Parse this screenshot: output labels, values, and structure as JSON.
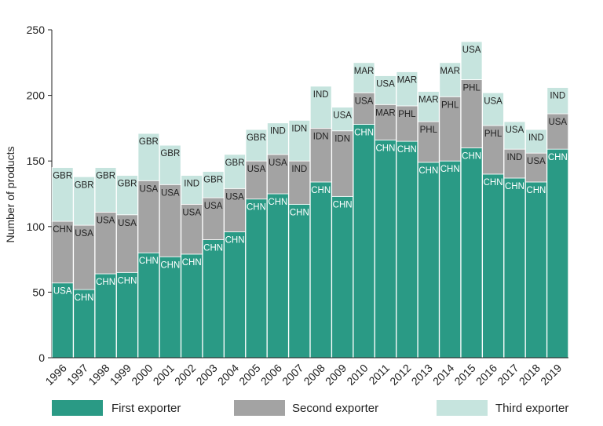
{
  "chart_data": {
    "type": "bar",
    "stacked": true,
    "title": "",
    "xlabel": "",
    "ylabel": "Number of products",
    "ylim": [
      0,
      250
    ],
    "yticks": [
      0,
      50,
      100,
      150,
      200,
      250
    ],
    "grid": false,
    "legend_position": "bottom",
    "categories": [
      "1996",
      "1997",
      "1998",
      "1999",
      "2000",
      "2001",
      "2002",
      "2003",
      "2004",
      "2005",
      "2006",
      "2007",
      "2008",
      "2009",
      "2010",
      "2011",
      "2012",
      "2013",
      "2014",
      "2015",
      "2016",
      "2017",
      "2018",
      "2019"
    ],
    "series": [
      {
        "name": "First exporter",
        "color": "#2a9a85",
        "values": [
          57,
          52,
          64,
          65,
          80,
          77,
          79,
          90,
          96,
          121,
          125,
          117,
          134,
          123,
          178,
          166,
          165,
          149,
          150,
          160,
          140,
          137,
          134,
          159
        ],
        "labels": [
          "USA",
          "CHN",
          "CHN",
          "CHN",
          "CHN",
          "CHN",
          "CHN",
          "CHN",
          "CHN",
          "CHN",
          "CHN",
          "CHN",
          "CHN",
          "CHN",
          "CHN",
          "CHN",
          "CHN",
          "CHN",
          "CHN",
          "CHN",
          "CHN",
          "CHN",
          "CHN",
          "CHN"
        ]
      },
      {
        "name": "Second exporter",
        "color": "#a3a3a3",
        "values": [
          47,
          49,
          47,
          44,
          55,
          55,
          38,
          32,
          33,
          29,
          30,
          33,
          41,
          50,
          24,
          27,
          27,
          31,
          49,
          52,
          37,
          22,
          22,
          27
        ],
        "labels": [
          "CHN",
          "USA",
          "USA",
          "USA",
          "USA",
          "USA",
          "USA",
          "USA",
          "USA",
          "USA",
          "USA",
          "IND",
          "IDN",
          "IDN",
          "USA",
          "MAR",
          "PHL",
          "PHL",
          "PHL",
          "PHL",
          "PHL",
          "IND",
          "USA",
          "USA"
        ]
      },
      {
        "name": "Third exporter",
        "color": "#c6e4de",
        "values": [
          41,
          37,
          34,
          30,
          36,
          30,
          22,
          20,
          26,
          24,
          24,
          31,
          32,
          18,
          23,
          22,
          26,
          23,
          26,
          29,
          25,
          21,
          18,
          20
        ],
        "labels": [
          "GBR",
          "GBR",
          "GBR",
          "GBR",
          "GBR",
          "GBR",
          "IND",
          "GBR",
          "GBR",
          "GBR",
          "IND",
          "IDN",
          "IND",
          "USA",
          "MAR",
          "USA",
          "MAR",
          "MAR",
          "MAR",
          "USA",
          "USA",
          "USA",
          "IND",
          "IND"
        ]
      }
    ]
  }
}
